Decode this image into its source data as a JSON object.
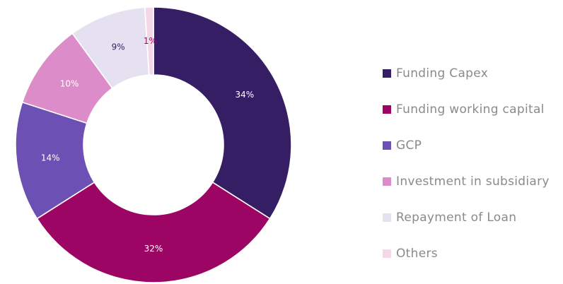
{
  "chart_data": {
    "type": "pie",
    "donut": true,
    "title": "",
    "legend_position": "right",
    "slices": [
      {
        "label": "Funding Capex",
        "value": 34,
        "display": "34%",
        "color": "#361e64",
        "text_color": "#ffffff"
      },
      {
        "label": "Funding working capital",
        "value": 32,
        "display": "32%",
        "color": "#9d0564",
        "text_color": "#ffffff"
      },
      {
        "label": "GCP",
        "value": 14,
        "display": "14%",
        "color": "#6c50b4",
        "text_color": "#ffffff"
      },
      {
        "label": "Investment in subsidiary",
        "value": 10,
        "display": "10%",
        "color": "#dc8cc8",
        "text_color": "#ffffff"
      },
      {
        "label": "Repayment of Loan",
        "value": 9,
        "display": "9%",
        "color": "#e6e1f0",
        "text_color": "#361e64"
      },
      {
        "label": "Others",
        "value": 1,
        "display": "1%",
        "color": "#f5d8e8",
        "text_color": "#9d0564"
      }
    ]
  }
}
